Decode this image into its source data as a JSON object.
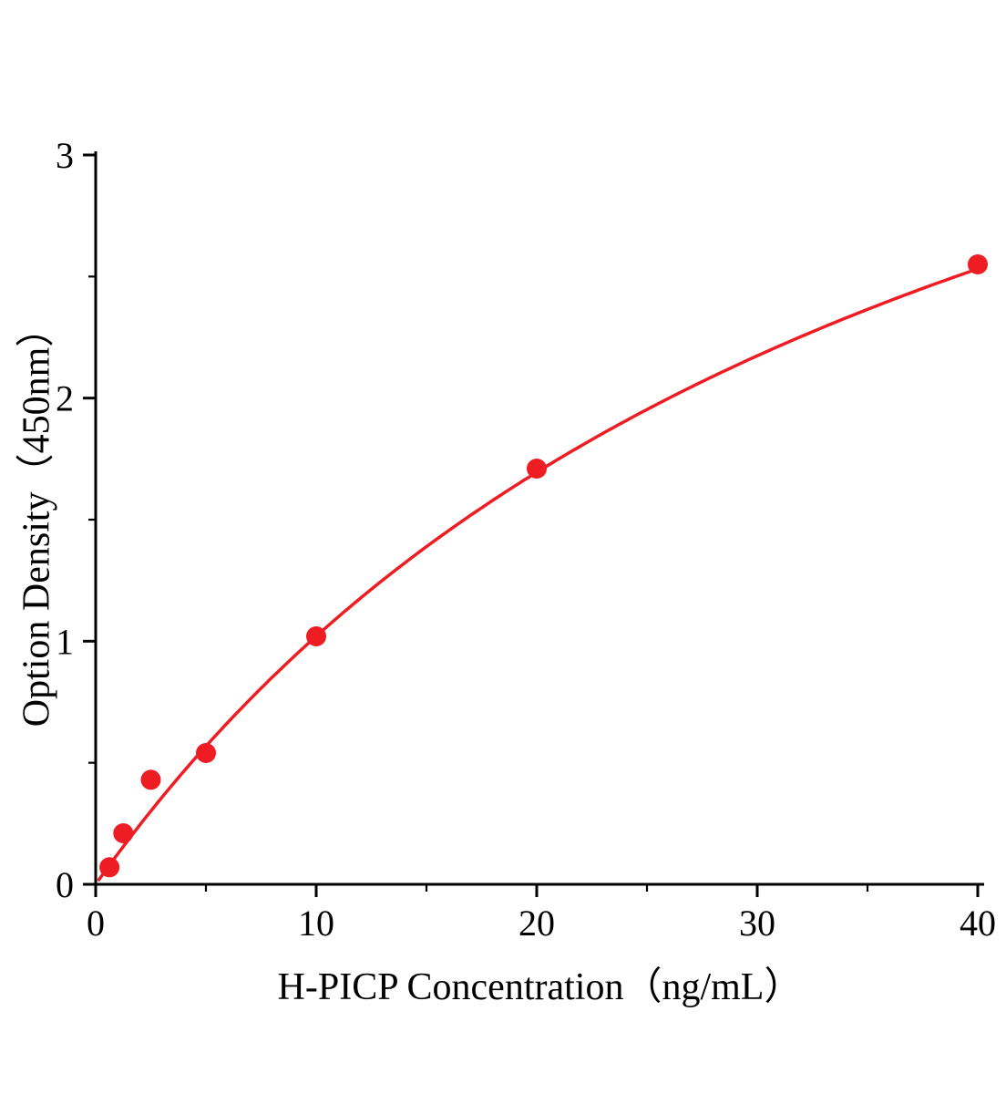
{
  "chart_data": {
    "type": "scatter",
    "title": "",
    "xlabel": "H-PICP Concentration（ng/mL）",
    "ylabel": "Option Density（450nm）",
    "x": [
      0.625,
      1.25,
      2.5,
      5,
      10,
      20,
      40
    ],
    "y": [
      0.07,
      0.21,
      0.43,
      0.54,
      1.02,
      1.71,
      2.55
    ],
    "xlim": [
      0,
      40
    ],
    "ylim": [
      0,
      3
    ],
    "x_ticks": [
      0,
      10,
      20,
      30,
      40
    ],
    "y_ticks": [
      0,
      1,
      2,
      3
    ],
    "grid": false,
    "legend": "none",
    "marker_color": "#ee1c23",
    "line_color": "#ee1c23",
    "axis_color": "#000000",
    "fit": {
      "model": "4PL",
      "A": 0,
      "D": 5,
      "C": 39,
      "B": 1,
      "x_start": 0.15
    }
  }
}
